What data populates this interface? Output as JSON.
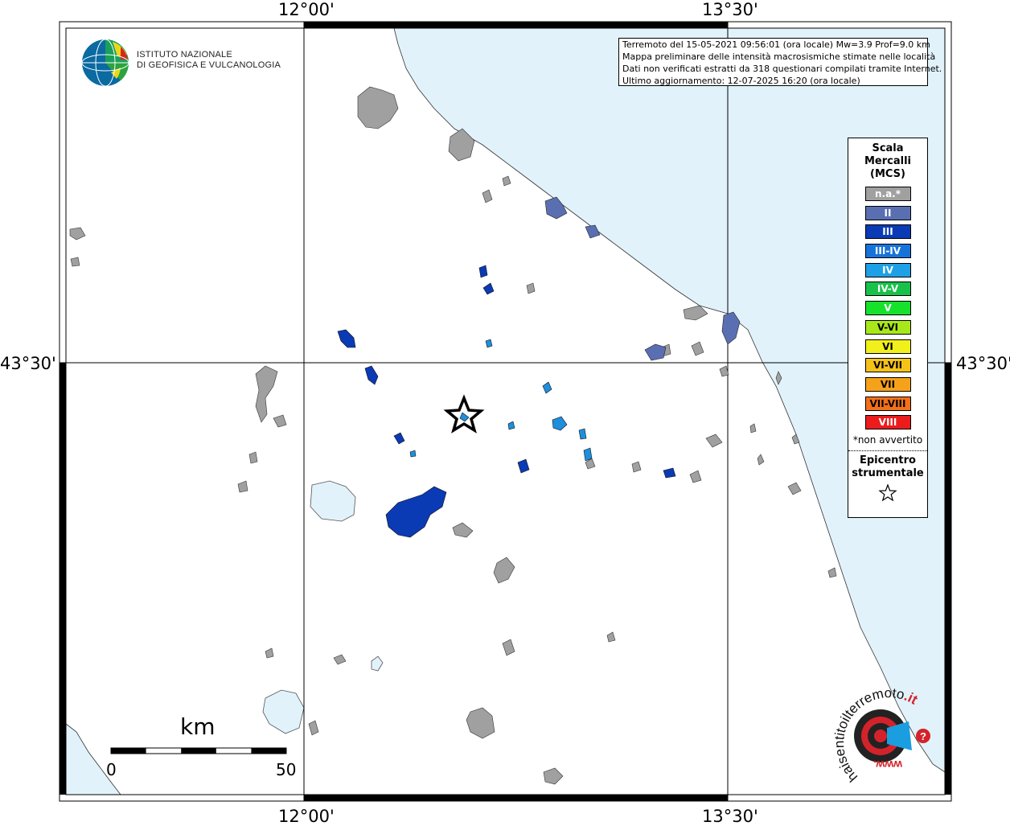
{
  "header": {
    "line1": "Terremoto del 15-05-2021 09:56:01 (ora locale) Mw=3.9 Prof=9.0 km",
    "line2": "Mappa preliminare delle intensità macrosismiche stimate nelle località",
    "line3": "Dati non verificati estratti da 318 questionari compilati tramite Internet.",
    "line4": "Ultimo aggiornamento: 12-07-2025 16:20 (ora locale)"
  },
  "logo": {
    "line1": "ISTITUTO NAZIONALE",
    "line2": "DI GEOFISICA E VULCANOLOGIA",
    "icon": "ingv-globe-icon"
  },
  "graticule": {
    "top_left": "12°00'",
    "top_right": "13°30'",
    "bottom_left": "12°00'",
    "bottom_right": "13°30'",
    "lat_left": "43°30'",
    "lat_right": "43°30'"
  },
  "legend": {
    "title": "Scala\nMercalli\n(MCS)",
    "items": [
      {
        "label": "n.a.*",
        "color": "#a0a0a0"
      },
      {
        "label": "II",
        "color": "#5a6fb2"
      },
      {
        "label": "III",
        "color": "#0b3ab5"
      },
      {
        "label": "III-IV",
        "color": "#1673d9"
      },
      {
        "label": "IV",
        "color": "#1ea0e6"
      },
      {
        "label": "IV-V",
        "color": "#18c24a"
      },
      {
        "label": "V",
        "color": "#16e22c"
      },
      {
        "label": "V-VI",
        "color": "#a8e81a",
        "dark": true
      },
      {
        "label": "VI",
        "color": "#f2f01c",
        "dark": true
      },
      {
        "label": "VI-VII",
        "color": "#f5c21a",
        "dark": true
      },
      {
        "label": "VII",
        "color": "#f5a11a",
        "dark": true
      },
      {
        "label": "VII-VIII",
        "color": "#f2701a",
        "dark": true
      },
      {
        "label": "VIII",
        "color": "#ec1c1c"
      }
    ],
    "note": "*non avvertito",
    "epicenter_title": "Epicentro\nstrumentale",
    "epicenter_icon": "star-icon"
  },
  "scalebar": {
    "unit": "km",
    "min": "0",
    "max": "50"
  },
  "badge": {
    "text_main": "haisentitoilterremoto",
    "text_it": ".it",
    "text_www": "www.",
    "icon": "haisentito-logo-icon"
  },
  "colors": {
    "sea": "#e1f2fb",
    "na": "#a0a0a0",
    "ii": "#5a6fb2",
    "iii": "#0b3ab5",
    "iv": "#1ea0e6",
    "lake": "#e1f2fb"
  }
}
